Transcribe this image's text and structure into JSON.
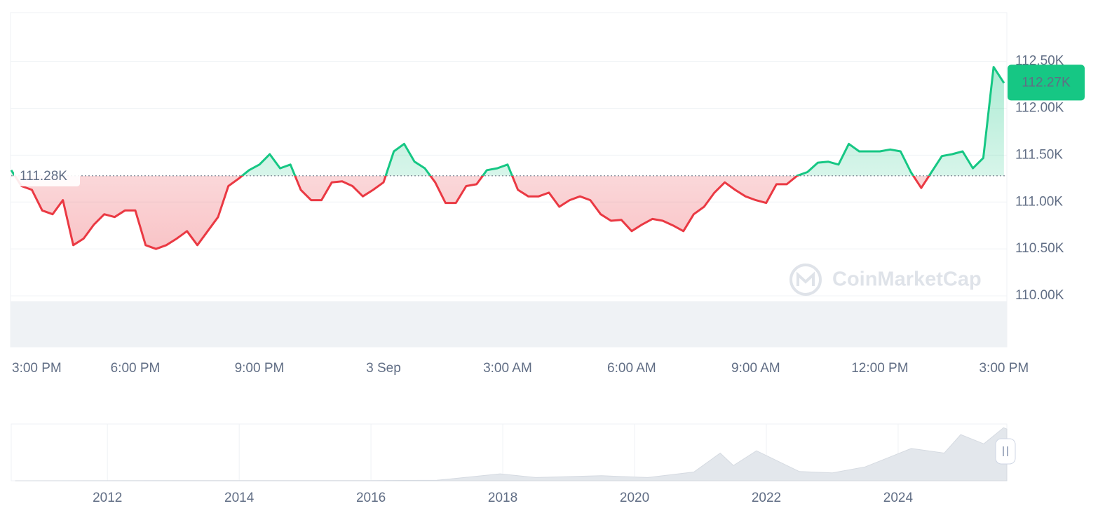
{
  "chart_data": [
    {
      "type": "line",
      "x": [
        0,
        0.25,
        0.5,
        0.75,
        1,
        1.25,
        1.5,
        1.75,
        2,
        2.25,
        2.5,
        2.75,
        3,
        3.25,
        3.5,
        3.75,
        4,
        4.25,
        4.5,
        4.75,
        5,
        5.25,
        5.5,
        5.75,
        6,
        6.25,
        6.5,
        6.75,
        7,
        7.25,
        7.5,
        7.75,
        8,
        8.25,
        8.5,
        8.75,
        9,
        9.25,
        9.5,
        9.75,
        10,
        10.25,
        10.5,
        10.75,
        11,
        11.25,
        11.5,
        11.75,
        12,
        12.25,
        12.5,
        12.75,
        13,
        13.25,
        13.5,
        13.75,
        14,
        14.25,
        14.5,
        14.75,
        15,
        15.25,
        15.5,
        15.75,
        16,
        16.25,
        16.5,
        16.75,
        17,
        17.25,
        17.5,
        17.75,
        18,
        18.25,
        18.5,
        18.75,
        19,
        19.25,
        19.5,
        19.75,
        20,
        20.25,
        20.5,
        20.75,
        21,
        21.25,
        21.5,
        21.75,
        22,
        22.25,
        22.5,
        22.75,
        23,
        23.25,
        23.5,
        23.75,
        24
      ],
      "values": [
        111340,
        111170,
        111130,
        110910,
        110870,
        111020,
        110540,
        110610,
        110760,
        110870,
        110840,
        110910,
        110910,
        110540,
        110500,
        110540,
        110610,
        110690,
        110540,
        110690,
        110840,
        111170,
        111250,
        111340,
        111400,
        111510,
        111360,
        111400,
        111130,
        111020,
        111020,
        111210,
        111220,
        111170,
        111060,
        111130,
        111210,
        111540,
        111620,
        111430,
        111360,
        111210,
        110990,
        110990,
        111170,
        111190,
        111340,
        111360,
        111400,
        111130,
        111060,
        111060,
        111100,
        110950,
        111020,
        111060,
        111020,
        110870,
        110800,
        110810,
        110690,
        110760,
        110820,
        110800,
        110750,
        110690,
        110870,
        110950,
        111100,
        111210,
        111130,
        111060,
        111020,
        110990,
        111190,
        111190,
        111280,
        111320,
        111420,
        111430,
        111400,
        111620,
        111540,
        111540,
        111540,
        111560,
        111540,
        111320,
        111150,
        111320,
        111490,
        111510,
        111540,
        111360,
        111470,
        112440,
        112270
      ],
      "up_color": "#16c784",
      "down_color": "#ea3943",
      "baseline": {
        "value": 111280,
        "label": "111.28K"
      },
      "current_price": {
        "value": 112270,
        "label": "112.27K"
      },
      "xlim": [
        0,
        24.07
      ],
      "xticks": [
        {
          "value": 0,
          "label": "3:00 PM"
        },
        {
          "value": 3,
          "label": "6:00 PM"
        },
        {
          "value": 6,
          "label": "9:00 PM"
        },
        {
          "value": 9,
          "label": "3 Sep"
        },
        {
          "value": 12,
          "label": "3:00 AM"
        },
        {
          "value": 15,
          "label": "6:00 AM"
        },
        {
          "value": 18,
          "label": "9:00 AM"
        },
        {
          "value": 21,
          "label": "12:00 PM"
        },
        {
          "value": 24,
          "label": "3:00 PM"
        }
      ],
      "ylim": [
        109455,
        113020
      ],
      "yticks": [
        {
          "value": 110000,
          "label": "110.00K"
        },
        {
          "value": 110500,
          "label": "110.50K"
        },
        {
          "value": 111000,
          "label": "111.00K"
        },
        {
          "value": 111500,
          "label": "111.50K"
        },
        {
          "value": 112000,
          "label": "112.00K"
        },
        {
          "value": 112500,
          "label": "112.50K"
        }
      ],
      "grid": true,
      "watermark": "CoinMarketCap"
    },
    {
      "type": "area",
      "x": [
        2010.6,
        2013.0,
        2016.0,
        2017.0,
        2017.96,
        2018.5,
        2019.5,
        2020.2,
        2020.9,
        2021.3,
        2021.5,
        2021.85,
        2022.5,
        2023.0,
        2023.5,
        2024.2,
        2024.7,
        2024.95,
        2025.3,
        2025.6,
        2025.65
      ],
      "values": [
        0,
        500,
        500,
        1000,
        15000,
        7000,
        11000,
        7000,
        19000,
        60000,
        33000,
        65000,
        20000,
        17000,
        30000,
        70000,
        60000,
        100000,
        80000,
        115000,
        112000
      ],
      "color": "#e3e7ec",
      "xlim": [
        2010.54,
        2025.65
      ],
      "ylim": [
        0,
        123000
      ],
      "xticks": [
        2012,
        2014,
        2016,
        2018,
        2020,
        2022,
        2024
      ]
    }
  ]
}
